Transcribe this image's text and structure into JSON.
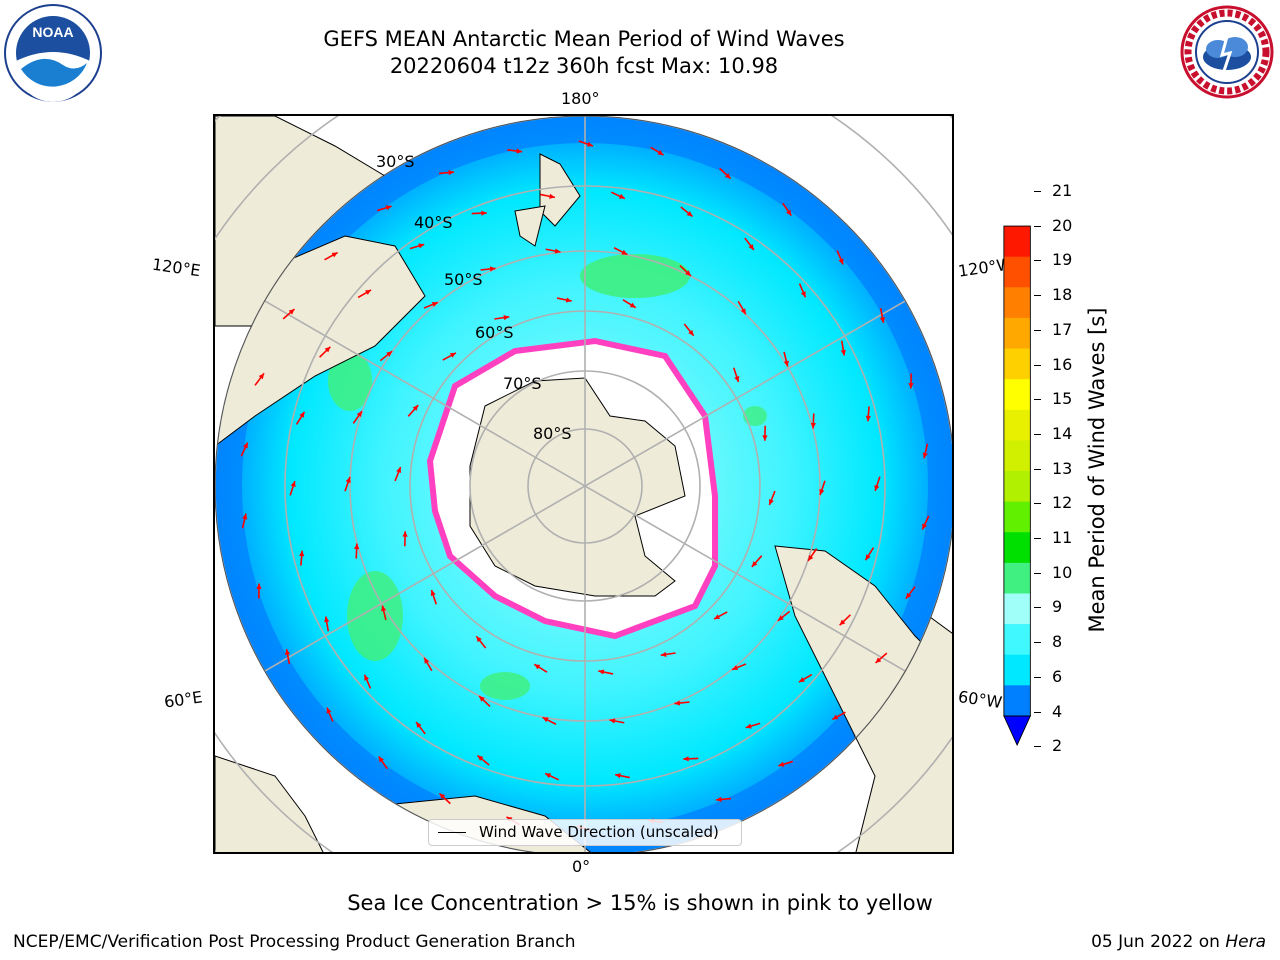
{
  "header": {
    "title_line1": "GEFS MEAN Antarctic Mean Period of Wind Waves",
    "title_line2": "20220604 t12z 360h fcst   Max: 10.98"
  },
  "logos": {
    "left": {
      "name": "NOAA",
      "ring_text": "NATIONAL OCEANIC AND ATMOSPHERIC ADMINISTRATION · U.S. DEPARTMENT OF COMMERCE"
    },
    "right": {
      "name": "NATIONAL WEATHER SERVICE"
    }
  },
  "map": {
    "projection": "south-polar-stereographic",
    "longitude_labels": {
      "top": "180°",
      "bottom": "0°",
      "left_upper": "120°E",
      "left_lower": "60°E",
      "right_upper": "120°W",
      "right_lower": "60°W"
    },
    "latitude_labels": [
      "30°S",
      "40°S",
      "50°S",
      "60°S",
      "70°S",
      "80°S"
    ],
    "legend": "Wind Wave Direction (unscaled)",
    "colors": {
      "land": "#eeebd8",
      "ocean_mid": "#00f0ff",
      "ocean_low": "#0080ff",
      "ice": "#ffffff",
      "arrow": "#ff0000",
      "grid": "#b0b0b0"
    }
  },
  "colorbar": {
    "label": "Mean Period of Wind Waves [s]",
    "ticks": [
      "2",
      "4",
      "6",
      "8",
      "9",
      "10",
      "11",
      "12",
      "13",
      "14",
      "15",
      "16",
      "17",
      "18",
      "19",
      "20",
      "21"
    ],
    "levels": [
      2,
      4,
      6,
      8,
      9,
      10,
      11,
      12,
      13,
      14,
      15,
      16,
      17,
      18,
      19,
      20,
      21
    ],
    "colors": [
      "#0080ff",
      "#00e8ff",
      "#40f8ff",
      "#a0fff8",
      "#40f080",
      "#00e000",
      "#60f000",
      "#b0f000",
      "#d0f000",
      "#e8f000",
      "#ffff00",
      "#ffd000",
      "#ffa800",
      "#ff8000",
      "#ff5000",
      "#ff1800"
    ],
    "extend_color": "#0000ff"
  },
  "chart_data": {
    "type": "heatmap",
    "title": "GEFS MEAN Antarctic Mean Period of Wind Waves",
    "subtitle": "20220604 t12z 360h fcst   Max: 10.98",
    "colorbar_label": "Mean Period of Wind Waves [s]",
    "colorbar_range": [
      2,
      21
    ],
    "max_value": 10.98
  },
  "annotations": {
    "subtitle": "Sea Ice Concentration > 15% is shown in pink to yellow"
  },
  "footer": {
    "left": "NCEP/EMC/Verification Post Processing Product Generation Branch",
    "right_date": "05 Jun 2022 on ",
    "right_machine": "Hera"
  }
}
